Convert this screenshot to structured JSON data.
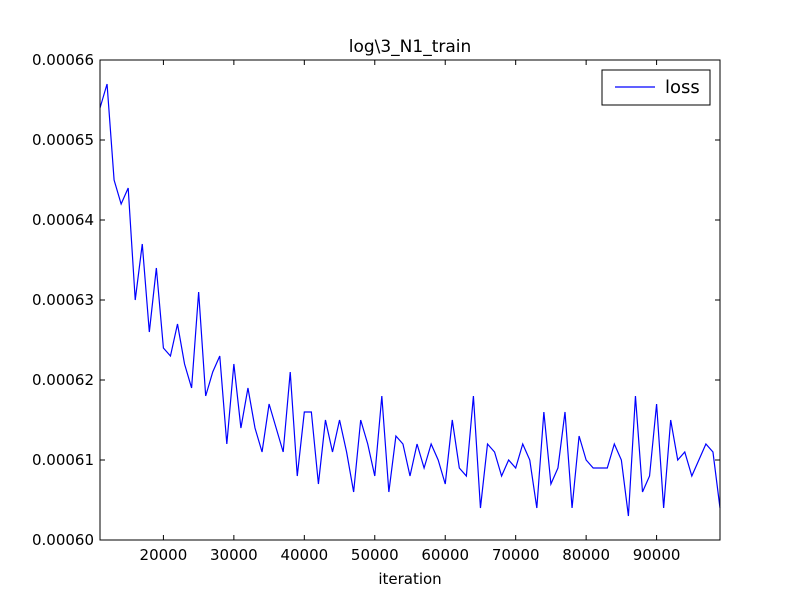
{
  "chart_data": {
    "type": "line",
    "title": "log\\3_N1_train",
    "xlabel": "iteration",
    "ylabel": "",
    "xlim": [
      11000,
      99000
    ],
    "ylim": [
      0.0006,
      0.00066
    ],
    "xticks": [
      20000,
      30000,
      40000,
      50000,
      60000,
      70000,
      80000,
      90000
    ],
    "xtick_labels": [
      "20000",
      "30000",
      "40000",
      "50000",
      "60000",
      "70000",
      "80000",
      "90000"
    ],
    "yticks": [
      0.0006,
      0.00061,
      0.00062,
      0.00063,
      0.00064,
      0.00065,
      0.00066
    ],
    "ytick_labels": [
      "0.00060",
      "0.00061",
      "0.00062",
      "0.00063",
      "0.00064",
      "0.00065",
      "0.00066"
    ],
    "grid": false,
    "legend_position": "top-right",
    "series": [
      {
        "name": "loss",
        "color": "#0000ff",
        "x": [
          11000,
          12000,
          13000,
          14000,
          15000,
          16000,
          17000,
          18000,
          19000,
          20000,
          21000,
          22000,
          23000,
          24000,
          25000,
          26000,
          27000,
          28000,
          29000,
          30000,
          31000,
          32000,
          33000,
          34000,
          35000,
          36000,
          37000,
          38000,
          39000,
          40000,
          41000,
          42000,
          43000,
          44000,
          45000,
          46000,
          47000,
          48000,
          49000,
          50000,
          51000,
          52000,
          53000,
          54000,
          55000,
          56000,
          57000,
          58000,
          59000,
          60000,
          61000,
          62000,
          63000,
          64000,
          65000,
          66000,
          67000,
          68000,
          69000,
          70000,
          71000,
          72000,
          73000,
          74000,
          75000,
          76000,
          77000,
          78000,
          79000,
          80000,
          81000,
          82000,
          83000,
          84000,
          85000,
          86000,
          87000,
          88000,
          89000,
          90000,
          91000,
          92000,
          93000,
          94000,
          95000,
          96000,
          97000,
          98000,
          99000
        ],
        "y": [
          0.000654,
          0.000657,
          0.000645,
          0.000642,
          0.000644,
          0.00063,
          0.000637,
          0.000626,
          0.000634,
          0.000624,
          0.000623,
          0.000627,
          0.000622,
          0.000619,
          0.000631,
          0.000618,
          0.000621,
          0.000623,
          0.000612,
          0.000622,
          0.000614,
          0.000619,
          0.000614,
          0.000611,
          0.000617,
          0.000614,
          0.000611,
          0.000621,
          0.000608,
          0.000616,
          0.000616,
          0.000607,
          0.000615,
          0.000611,
          0.000615,
          0.000611,
          0.000606,
          0.000615,
          0.000612,
          0.000608,
          0.000618,
          0.000606,
          0.000613,
          0.000612,
          0.000608,
          0.000612,
          0.000609,
          0.000612,
          0.00061,
          0.000607,
          0.000615,
          0.000609,
          0.000608,
          0.000618,
          0.000604,
          0.000612,
          0.000611,
          0.000608,
          0.00061,
          0.000609,
          0.000612,
          0.00061,
          0.000604,
          0.000616,
          0.000607,
          0.000609,
          0.000616,
          0.000604,
          0.000613,
          0.00061,
          0.000609,
          0.000609,
          0.000609,
          0.000612,
          0.00061,
          0.000603,
          0.000618,
          0.000606,
          0.000608,
          0.000617,
          0.000604,
          0.000615,
          0.00061,
          0.000611,
          0.000608,
          0.00061,
          0.000612,
          0.000611,
          0.000604
        ]
      }
    ]
  }
}
